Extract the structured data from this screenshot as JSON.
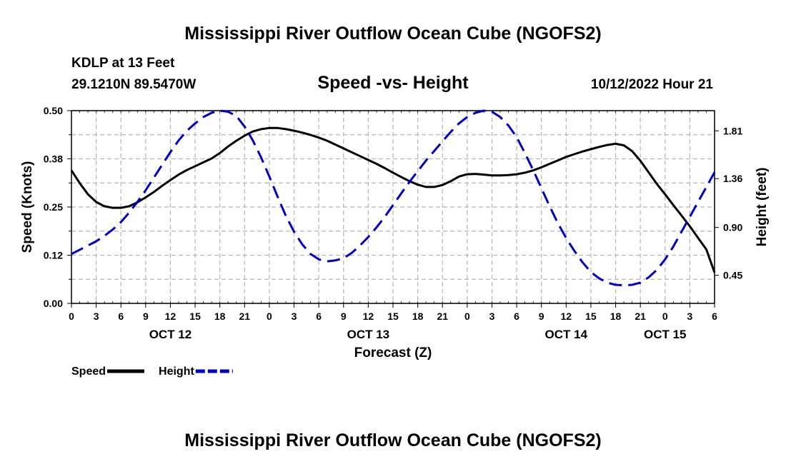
{
  "header": {
    "title": "Mississippi River Outflow Ocean Cube (NGOFS2)",
    "station": "KDLP at 13 Feet",
    "coords": "29.1210N  89.5470W",
    "datetime": "10/12/2022 Hour 21",
    "footer_title": "Mississippi River Outflow Ocean Cube (NGOFS2)"
  },
  "chart_data": {
    "type": "line",
    "title": "Speed -vs- Height",
    "xlabel": "Forecast (Z)",
    "ylabel": "Speed (Knots)",
    "y2label": "Height (feet)",
    "x_range_hours": [
      0,
      78
    ],
    "x_tick_labels": [
      "0",
      "3",
      "6",
      "9",
      "12",
      "15",
      "18",
      "21",
      "0",
      "3",
      "6",
      "9",
      "12",
      "15",
      "18",
      "21",
      "0",
      "3",
      "6",
      "9",
      "12",
      "15",
      "18",
      "21",
      "0",
      "3",
      "6"
    ],
    "day_labels": [
      {
        "label": "OCT 12",
        "hour": 12
      },
      {
        "label": "OCT 13",
        "hour": 36
      },
      {
        "label": "OCT 14",
        "hour": 60
      },
      {
        "label": "OCT 15",
        "hour": 72
      }
    ],
    "ylim": [
      0,
      0.5
    ],
    "y_ticks": [
      "0.00",
      "0.12",
      "0.25",
      "0.38",
      "0.50"
    ],
    "y2lim": [
      0.185,
      2.0
    ],
    "y2_ticks": [
      "0.45",
      "0.90",
      "1.36",
      "1.81"
    ],
    "series": [
      {
        "name": "Speed",
        "axis": "left",
        "color": "#000000",
        "dash": "solid",
        "x": [
          0,
          1,
          2,
          3,
          4,
          5,
          6,
          7,
          8,
          9,
          10,
          11,
          12,
          13,
          14,
          15,
          16,
          17,
          18,
          19,
          20,
          21,
          22,
          23,
          24,
          25,
          26,
          27,
          28,
          29,
          30,
          31,
          32,
          33,
          34,
          35,
          36,
          37,
          38,
          39,
          40,
          41,
          42,
          43,
          44,
          45,
          46,
          47,
          48,
          49,
          50,
          51,
          52,
          53,
          54,
          55,
          56,
          57,
          58,
          59,
          60,
          61,
          62,
          63,
          64,
          65,
          66,
          67,
          68,
          69,
          70,
          71,
          72,
          73,
          74,
          75,
          76,
          77,
          78
        ],
        "values": [
          0.345,
          0.312,
          0.283,
          0.263,
          0.252,
          0.248,
          0.248,
          0.252,
          0.262,
          0.275,
          0.289,
          0.305,
          0.32,
          0.334,
          0.346,
          0.356,
          0.366,
          0.376,
          0.39,
          0.407,
          0.422,
          0.435,
          0.446,
          0.452,
          0.455,
          0.455,
          0.452,
          0.448,
          0.443,
          0.437,
          0.43,
          0.422,
          0.412,
          0.402,
          0.392,
          0.382,
          0.372,
          0.362,
          0.351,
          0.339,
          0.328,
          0.317,
          0.308,
          0.302,
          0.302,
          0.307,
          0.317,
          0.329,
          0.335,
          0.336,
          0.334,
          0.332,
          0.332,
          0.333,
          0.335,
          0.339,
          0.345,
          0.353,
          0.362,
          0.371,
          0.38,
          0.387,
          0.394,
          0.4,
          0.406,
          0.411,
          0.414,
          0.41,
          0.395,
          0.37,
          0.34,
          0.31,
          0.283,
          0.255,
          0.228,
          0.2,
          0.17,
          0.14,
          0.08
        ]
      },
      {
        "name": "Height",
        "axis": "right",
        "color": "#0000cc",
        "dash": "dashed",
        "x": [
          0,
          1,
          2,
          3,
          4,
          5,
          6,
          7,
          8,
          9,
          10,
          11,
          12,
          13,
          14,
          15,
          16,
          17,
          18,
          19,
          20,
          21,
          22,
          23,
          24,
          25,
          26,
          27,
          28,
          29,
          30,
          31,
          32,
          33,
          34,
          35,
          36,
          37,
          38,
          39,
          40,
          41,
          42,
          43,
          44,
          45,
          46,
          47,
          48,
          49,
          50,
          51,
          52,
          53,
          54,
          55,
          56,
          57,
          58,
          59,
          60,
          61,
          62,
          63,
          64,
          65,
          66,
          67,
          68,
          69,
          70,
          71,
          72,
          73,
          74,
          75,
          76,
          77,
          78
        ],
        "values": [
          0.65,
          0.69,
          0.73,
          0.77,
          0.82,
          0.88,
          0.95,
          1.04,
          1.14,
          1.25,
          1.37,
          1.49,
          1.61,
          1.72,
          1.81,
          1.88,
          1.94,
          1.98,
          2.0,
          1.99,
          1.95,
          1.85,
          1.72,
          1.56,
          1.38,
          1.19,
          1.01,
          0.86,
          0.74,
          0.65,
          0.6,
          0.58,
          0.59,
          0.61,
          0.66,
          0.73,
          0.81,
          0.9,
          1.0,
          1.11,
          1.22,
          1.33,
          1.43,
          1.53,
          1.62,
          1.71,
          1.8,
          1.88,
          1.94,
          1.98,
          2.0,
          1.99,
          1.94,
          1.86,
          1.75,
          1.6,
          1.44,
          1.27,
          1.1,
          0.94,
          0.8,
          0.68,
          0.57,
          0.48,
          0.42,
          0.38,
          0.36,
          0.355,
          0.36,
          0.38,
          0.43,
          0.5,
          0.6,
          0.72,
          0.86,
          1.0,
          1.14,
          1.28,
          1.42
        ]
      }
    ],
    "legend": [
      {
        "label": "Speed",
        "color": "#000000",
        "dash": "solid"
      },
      {
        "label": "Height",
        "color": "#0000cc",
        "dash": "dashed"
      }
    ],
    "grid": true
  }
}
